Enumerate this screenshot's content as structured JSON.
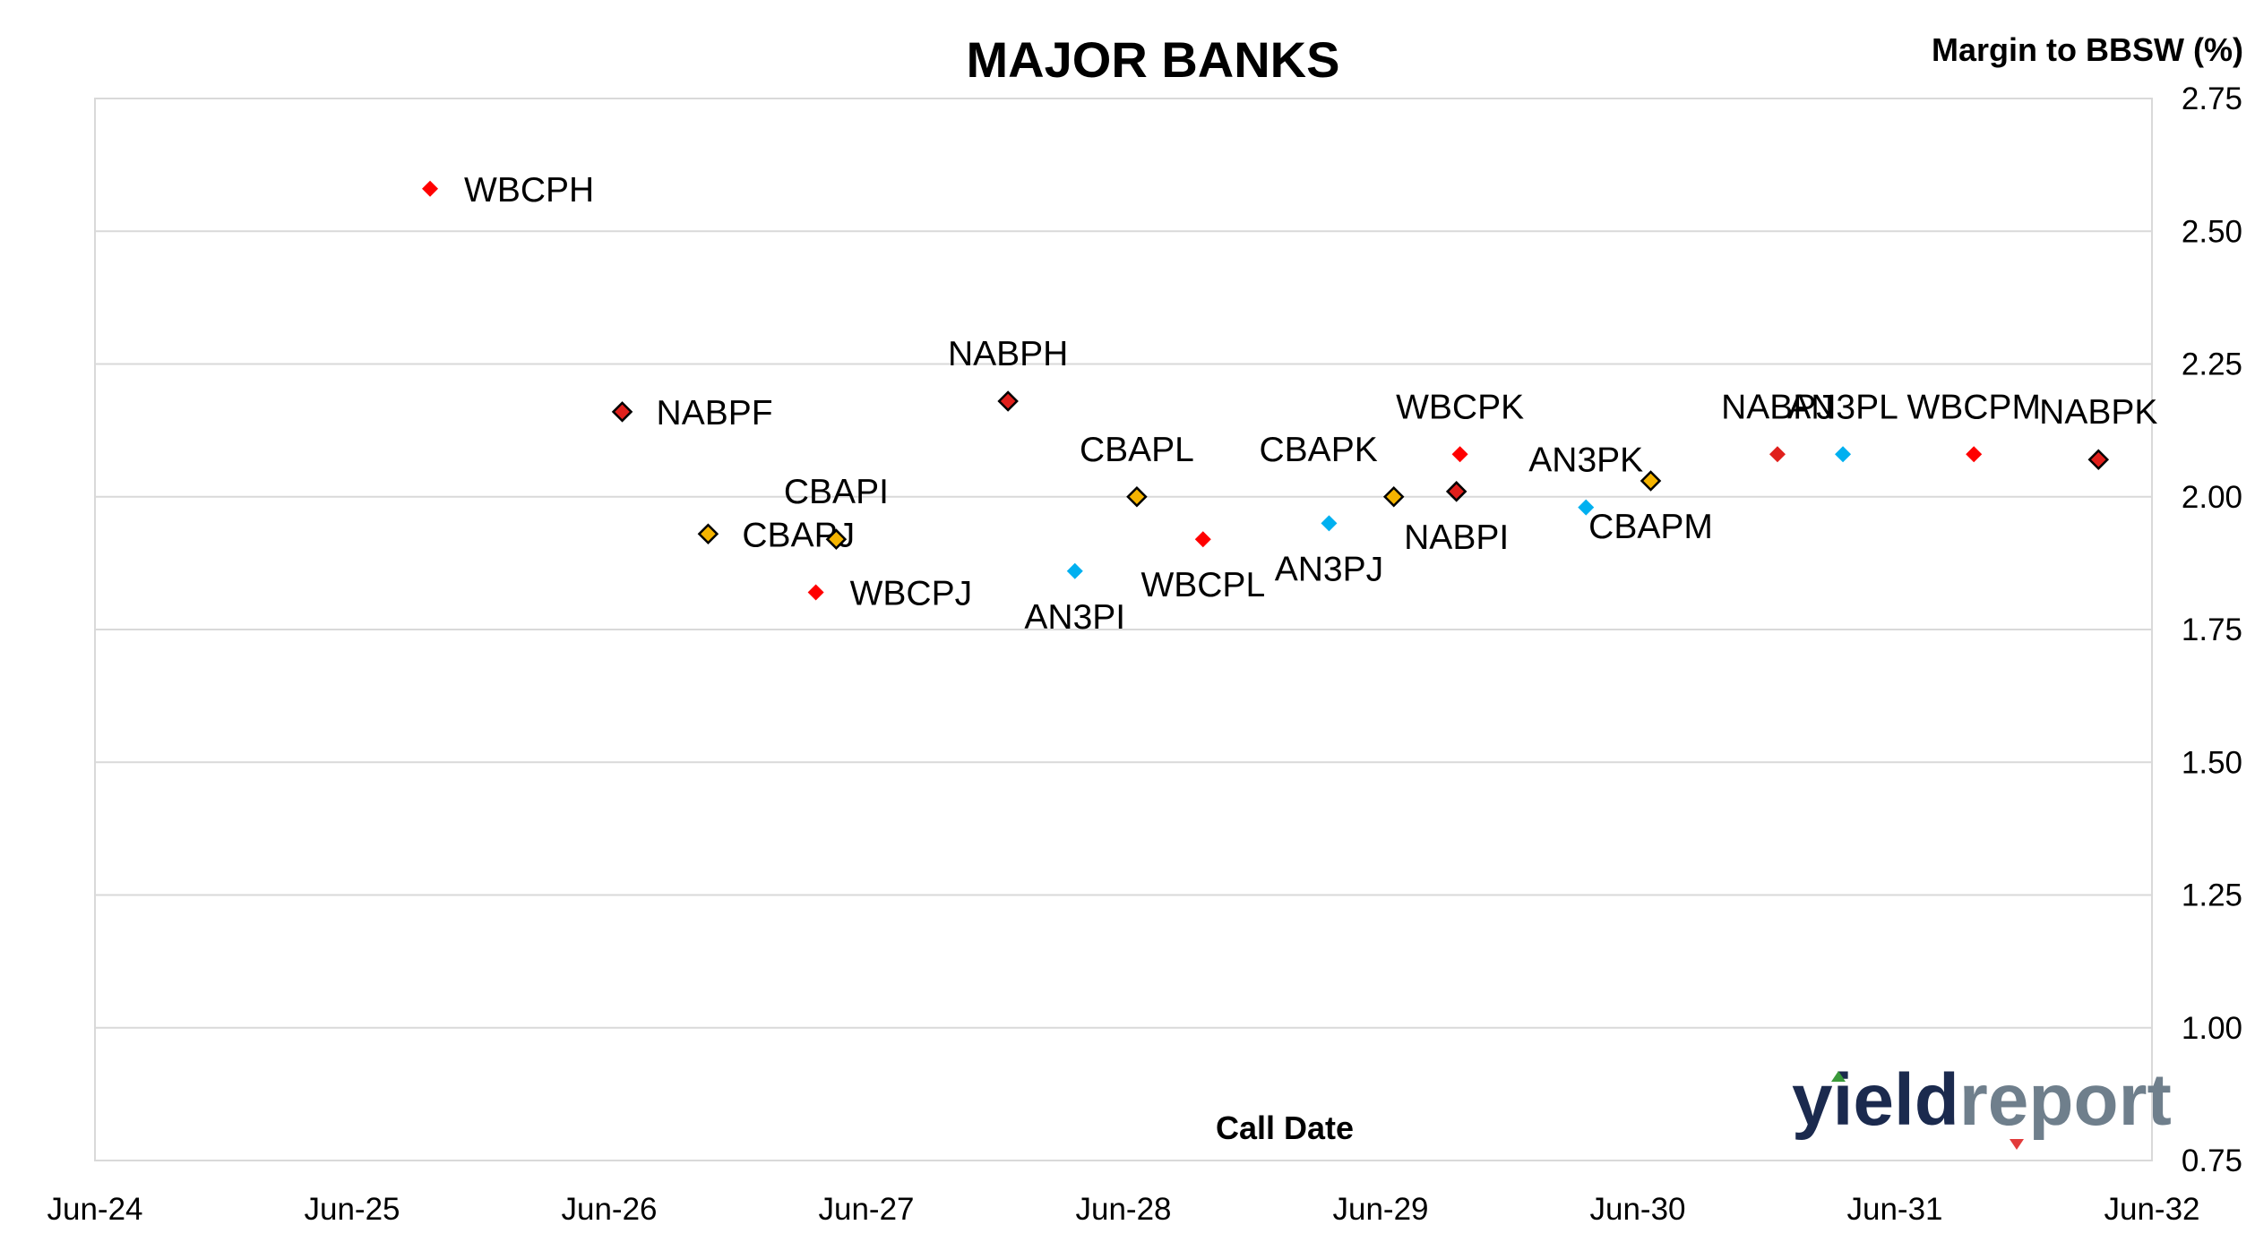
{
  "chart_data": {
    "type": "scatter",
    "title": "MAJOR BANKS",
    "xlabel": "Call Date",
    "ylabel": "Margin to BBSW (%)",
    "x_axis": {
      "type": "date",
      "min": "2024-06",
      "max": "2032-06",
      "ticks": [
        "Jun-24",
        "Jun-25",
        "Jun-26",
        "Jun-27",
        "Jun-28",
        "Jun-29",
        "Jun-30",
        "Jun-31",
        "Jun-32"
      ]
    },
    "y_axis": {
      "position": "right",
      "min": 0.75,
      "max": 2.75,
      "ticks": [
        "0.75",
        "1.00",
        "1.25",
        "1.50",
        "1.75",
        "2.00",
        "2.25",
        "2.50",
        "2.75"
      ]
    },
    "grid": true,
    "colors": {
      "WBC": "#ff0000",
      "NAB": "#e0201c",
      "CBA": "#f5b400",
      "AN3": "#00b0f0",
      "outline": "#000000"
    },
    "points": [
      {
        "label": "WBCPH",
        "x": "2025-09-20",
        "y": 2.58,
        "issuer": "WBC",
        "outlined": false
      },
      {
        "label": "NABPF",
        "x": "2026-06-20",
        "y": 2.16,
        "issuer": "NAB",
        "outlined": true
      },
      {
        "label": "CBAPJ",
        "x": "2026-10-20",
        "y": 1.93,
        "issuer": "CBA",
        "outlined": true
      },
      {
        "label": "WBCPJ",
        "x": "2027-03-22",
        "y": 1.82,
        "issuer": "WBC",
        "outlined": false
      },
      {
        "label": "CBAPI",
        "x": "2027-04-20",
        "y": 1.92,
        "issuer": "CBA",
        "outlined": true
      },
      {
        "label": "NABPH",
        "x": "2027-12-20",
        "y": 2.18,
        "issuer": "NAB",
        "outlined": true
      },
      {
        "label": "AN3PI",
        "x": "2028-03-24",
        "y": 1.86,
        "issuer": "AN3",
        "outlined": false
      },
      {
        "label": "CBAPL",
        "x": "2028-06-20",
        "y": 2.0,
        "issuer": "CBA",
        "outlined": true
      },
      {
        "label": "WBCPL",
        "x": "2028-09-22",
        "y": 1.92,
        "issuer": "WBC",
        "outlined": false
      },
      {
        "label": "AN3PJ",
        "x": "2029-03-20",
        "y": 1.95,
        "issuer": "AN3",
        "outlined": false
      },
      {
        "label": "CBAPK",
        "x": "2029-06-20",
        "y": 2.0,
        "issuer": "CBA",
        "outlined": true
      },
      {
        "label": "NABPI",
        "x": "2029-09-17",
        "y": 2.01,
        "issuer": "NAB",
        "outlined": true
      },
      {
        "label": "WBCPK",
        "x": "2029-09-22",
        "y": 2.08,
        "issuer": "WBC",
        "outlined": false
      },
      {
        "label": "AN3PK",
        "x": "2030-03-20",
        "y": 1.98,
        "issuer": "AN3",
        "outlined": false
      },
      {
        "label": "CBAPM",
        "x": "2030-06-20",
        "y": 2.03,
        "issuer": "CBA",
        "outlined": true
      },
      {
        "label": "NABPJ",
        "x": "2030-12-17",
        "y": 2.08,
        "issuer": "NAB",
        "outlined": false
      },
      {
        "label": "AN3PL",
        "x": "2031-03-20",
        "y": 2.08,
        "issuer": "AN3",
        "outlined": false
      },
      {
        "label": "WBCPM",
        "x": "2031-09-22",
        "y": 2.08,
        "issuer": "WBC",
        "outlined": false
      },
      {
        "label": "NABPK",
        "x": "2032-03-17",
        "y": 2.07,
        "issuer": "NAB",
        "outlined": true
      }
    ]
  },
  "logo": {
    "part1": "yield",
    "part2": "report"
  }
}
